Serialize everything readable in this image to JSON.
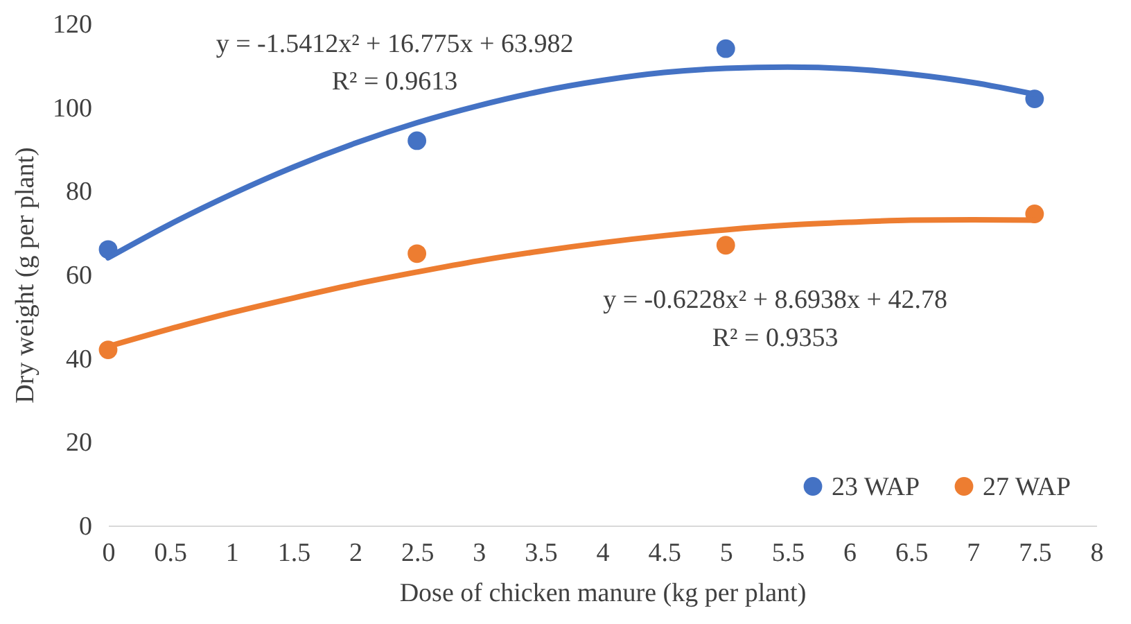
{
  "chart_data": {
    "type": "scatter",
    "xlabel": "Dose of chicken manure (kg per plant)",
    "ylabel": "Dry weight (g per plant)",
    "xlim": [
      0,
      8
    ],
    "xticks": [
      0,
      0.5,
      1,
      1.5,
      2,
      2.5,
      3,
      3.5,
      4,
      4.5,
      5,
      5.5,
      6,
      6.5,
      7,
      7.5,
      8
    ],
    "ylim": [
      0,
      120
    ],
    "yticks": [
      0,
      20,
      40,
      60,
      80,
      100,
      120
    ],
    "x": [
      0,
      2.5,
      5,
      7.5
    ],
    "series": [
      {
        "name": "23 WAP",
        "color": "#4472c4",
        "marker": "circle",
        "values": [
          66,
          92,
          114,
          102
        ]
      },
      {
        "name": "27 WAP",
        "color": "#ed7d31",
        "marker": "circle",
        "values": [
          42,
          65,
          67,
          74.5
        ]
      },
      {
        "type": "line",
        "marker": "none",
        "color": "#4472c4",
        "x": [
          0,
          0.5,
          1,
          1.5,
          2,
          2.5,
          3,
          3.5,
          4,
          4.5,
          5,
          5.5,
          6,
          6.5,
          7,
          7.5
        ],
        "values": [
          64.0,
          72.0,
          79.2,
          85.7,
          91.4,
          96.3,
          100.4,
          103.8,
          106.4,
          108.3,
          109.3,
          109.6,
          109.2,
          107.9,
          105.9,
          103.1
        ]
      },
      {
        "type": "line",
        "marker": "none",
        "color": "#ed7d31",
        "x": [
          0,
          0.5,
          1,
          1.5,
          2,
          2.5,
          3,
          3.5,
          4,
          4.5,
          5,
          5.5,
          6,
          6.5,
          7,
          7.5
        ],
        "values": [
          42.8,
          47.0,
          50.9,
          54.4,
          57.7,
          60.6,
          63.3,
          65.6,
          67.6,
          69.3,
          70.7,
          71.8,
          72.5,
          73.0,
          73.1,
          73.0
        ]
      }
    ],
    "annotations": [
      "y = -1.5412x² + 16.775x + 63.982",
      "R² = 0.9613",
      "y = -0.6228x² + 8.6938x + 42.78",
      "R² = 0.9353"
    ],
    "legend": "bottom right",
    "line_style": "solid"
  }
}
